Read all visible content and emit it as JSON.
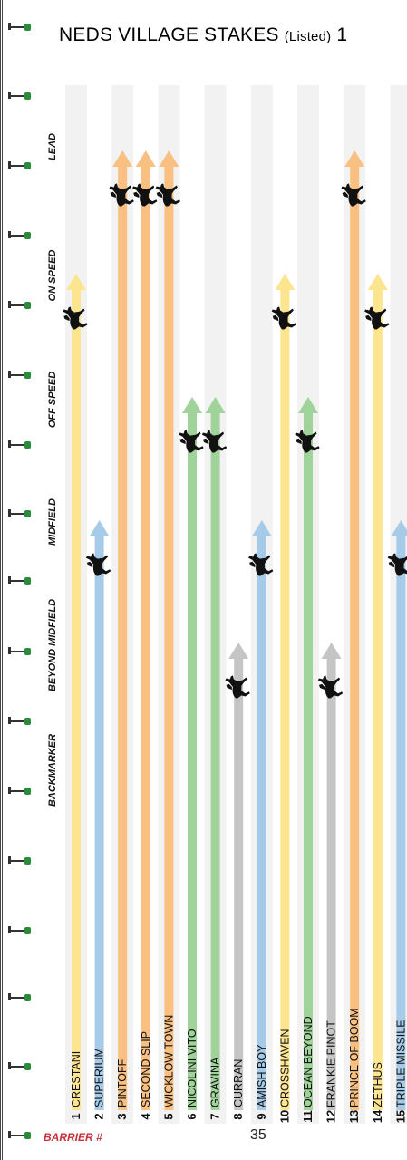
{
  "title": {
    "main": "NEDS VILLAGE STAKES",
    "paren": "(Listed)",
    "trail": "1"
  },
  "footer": {
    "barrier_label": "BARRIER #",
    "page_number": "35"
  },
  "colors": {
    "Backmarker": "#c5c5c5",
    "Beyond Midfield": "#a6cbe8",
    "Midfield": "#9fd39a",
    "Off Speed": "#fde58f",
    "On Speed": "#f9c081",
    "stripe": "#f2f2f2",
    "rail_marker": "#2a8c3a"
  },
  "chart_data": {
    "type": "bar",
    "title": "NEDS VILLAGE STAKES (Listed)",
    "xlabel": "BARRIER #",
    "ylabel": "",
    "stages": [
      "BACKMARKER",
      "BEYOND MIDFIELD",
      "MIDFIELD",
      "OFF SPEED",
      "ON SPEED",
      "LEAD"
    ],
    "ylim": [
      0,
      5
    ],
    "categories": [
      "1",
      "2",
      "3",
      "4",
      "5",
      "6",
      "7",
      "8",
      "9",
      "10",
      "11",
      "12",
      "13",
      "14",
      "15"
    ],
    "horses": [
      "CRESTANI",
      "SUPERIUM",
      "PINTOFF",
      "SECOND SLIP",
      "WICKLOW TOWN",
      "NICOLINI VITO",
      "GRAVINA",
      "CURRAN",
      "AMISH BOY",
      "CROSSHAVEN",
      "OCEAN BEYOND",
      "FRANKIE PINOT",
      "PRINCE OF BOOM",
      "ZETHUS",
      "TRIPLE MISSILE"
    ],
    "positions": [
      "Off Speed",
      "Beyond Midfield",
      "On Speed",
      "On Speed",
      "On Speed",
      "Midfield",
      "Midfield",
      "Backmarker",
      "Beyond Midfield",
      "Off Speed",
      "Midfield",
      "Backmarker",
      "On Speed",
      "Off Speed",
      "Beyond Midfield"
    ],
    "values": [
      4,
      2,
      5,
      5,
      5,
      3,
      3,
      1,
      2,
      4,
      3,
      1,
      5,
      4,
      2
    ]
  }
}
